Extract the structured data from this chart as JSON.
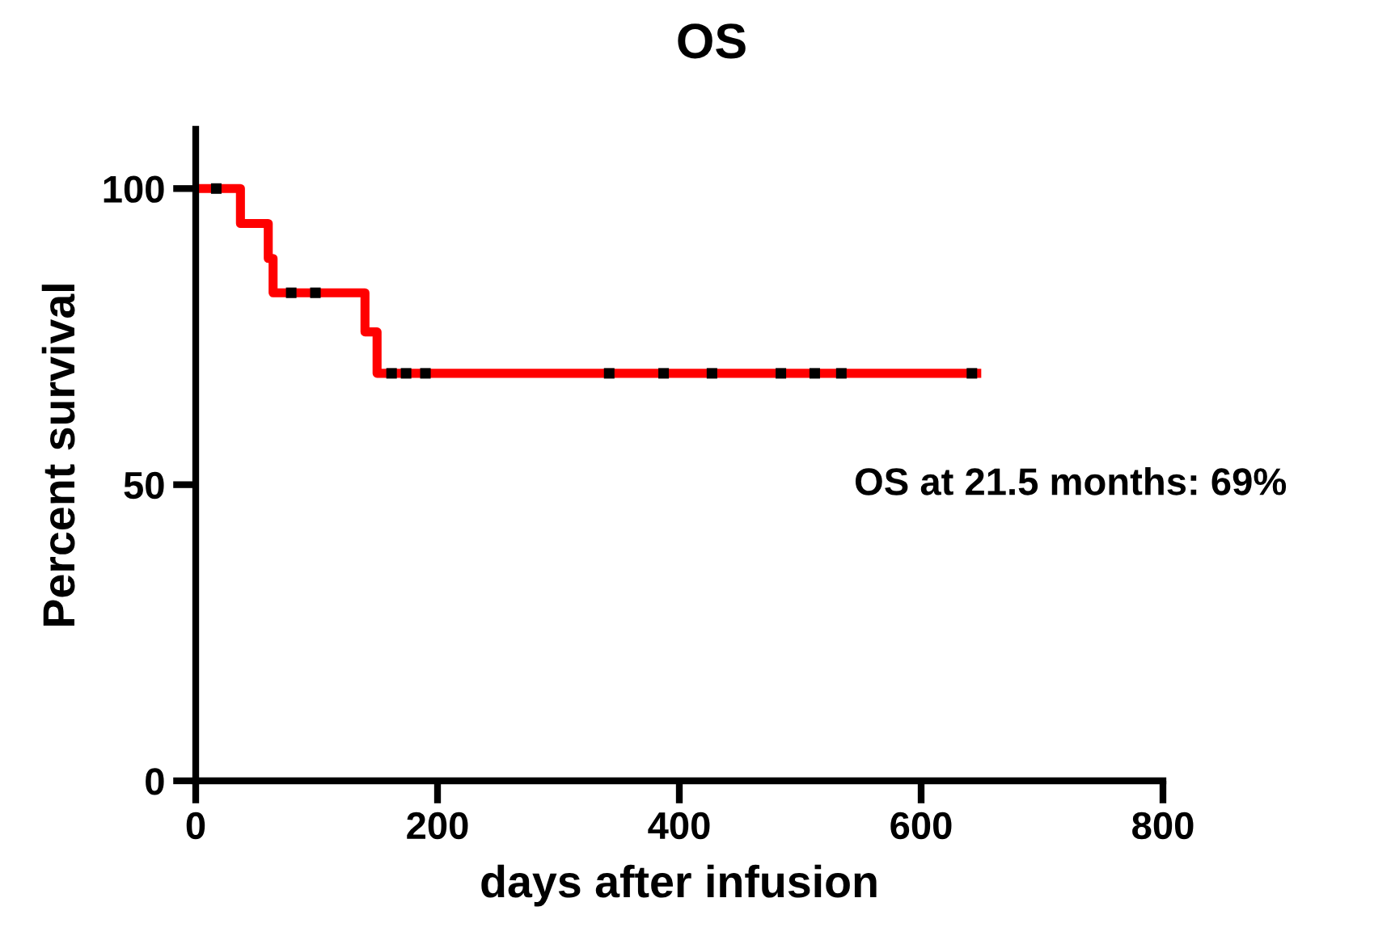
{
  "chart_data": {
    "type": "step",
    "title": "OS",
    "xlabel": "days after infusion",
    "ylabel": "Percent survival",
    "xlim": [
      0,
      800
    ],
    "xticks": [
      0,
      200,
      400,
      600,
      800
    ],
    "ylim": [
      0,
      110
    ],
    "yticks": [
      0,
      50,
      100
    ],
    "grid": false,
    "legend": false,
    "series": [
      {
        "color": "#ff0000",
        "x": [
          0,
          37,
          60,
          64,
          140,
          150,
          646
        ],
        "values": [
          100,
          94.1,
          88.2,
          82.4,
          75.8,
          68.8,
          68.8
        ]
      },
      {
        "type": "scatter",
        "color": "#000000",
        "marker": "square",
        "x": [
          17,
          79,
          99,
          162,
          174,
          190,
          342,
          387,
          427,
          484,
          512,
          534,
          642
        ],
        "values": [
          100,
          82.4,
          82.4,
          68.8,
          68.8,
          68.8,
          68.8,
          68.8,
          68.8,
          68.8,
          68.8,
          68.8,
          68.8
        ]
      }
    ],
    "annotations": [
      "OS at 21.5 months: 69%"
    ]
  }
}
